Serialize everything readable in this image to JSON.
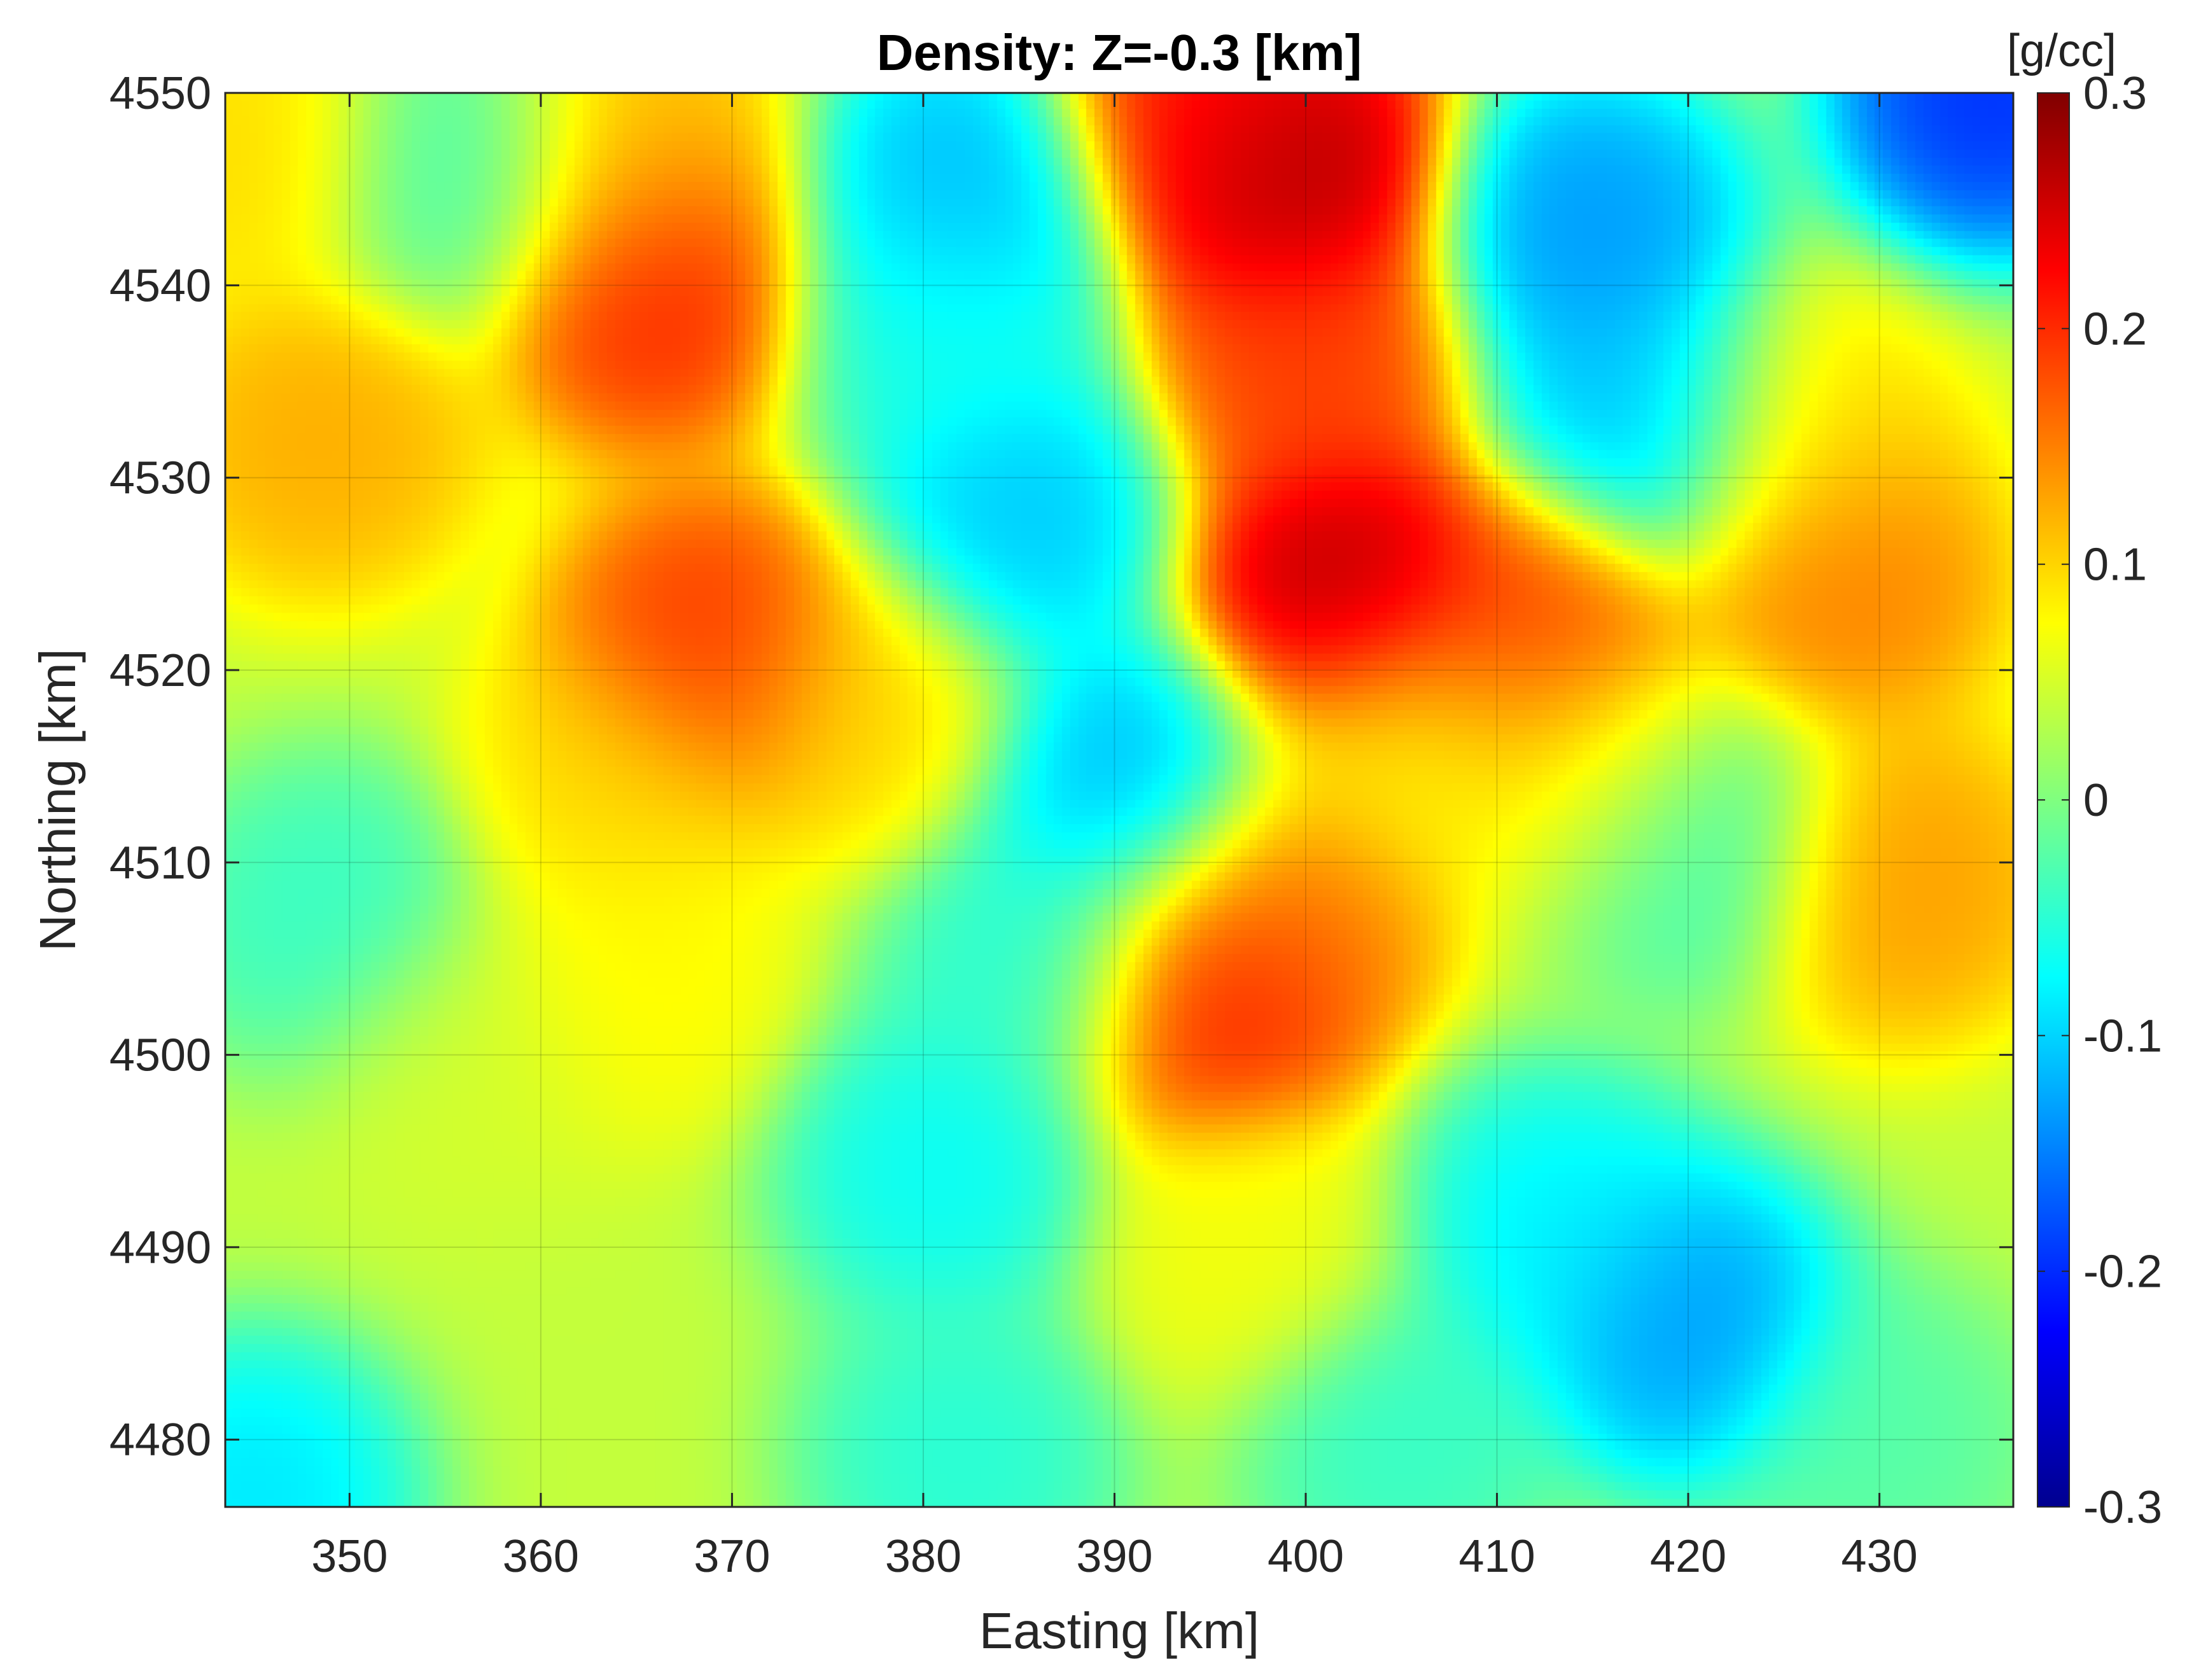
{
  "chart_data": {
    "type": "heatmap",
    "title": "Density: Z=-0.3 [km]",
    "xlabel": "Easting [km]",
    "ylabel": "Northing [km]",
    "xlim": [
      343.5,
      437
    ],
    "ylim": [
      4476.5,
      4550
    ],
    "x_ticks": [
      350,
      360,
      370,
      380,
      390,
      400,
      410,
      420,
      430
    ],
    "y_ticks": [
      4480,
      4490,
      4500,
      4510,
      4520,
      4530,
      4540,
      4550
    ],
    "grid": true,
    "colorbar": {
      "label": "[g/cc]",
      "colormap": "jet",
      "clim": [
        -0.3,
        0.3
      ],
      "ticks": [
        0.3,
        0.2,
        0.1,
        0,
        -0.1,
        -0.2,
        -0.3
      ],
      "tick_labels": [
        "0.3",
        "0.2",
        "0.1",
        "0",
        "-0.1",
        "-0.2",
        "-0.3"
      ],
      "position": "right"
    },
    "background_value": 0.04,
    "anomalies": [
      {
        "x": 366,
        "y": 4540,
        "value": 0.22
      },
      {
        "x": 365,
        "y": 4547,
        "value": 0.12
      },
      {
        "x": 369,
        "y": 4521,
        "value": 0.21
      },
      {
        "x": 364,
        "y": 4514,
        "value": 0.1
      },
      {
        "x": 377,
        "y": 4518,
        "value": 0.1
      },
      {
        "x": 365,
        "y": 4504,
        "value": 0.08
      },
      {
        "x": 345,
        "y": 4547,
        "value": 0.1
      },
      {
        "x": 348.5,
        "y": 4532,
        "value": 0.13
      },
      {
        "x": 399,
        "y": 4546,
        "value": 0.3
      },
      {
        "x": 395,
        "y": 4549,
        "value": 0.22
      },
      {
        "x": 400,
        "y": 4536,
        "value": 0.2
      },
      {
        "x": 402,
        "y": 4524,
        "value": 0.29
      },
      {
        "x": 412,
        "y": 4522,
        "value": 0.2
      },
      {
        "x": 405,
        "y": 4516,
        "value": 0.08
      },
      {
        "x": 399,
        "y": 4508,
        "value": 0.16
      },
      {
        "x": 395,
        "y": 4503,
        "value": 0.23
      },
      {
        "x": 415,
        "y": 4515,
        "value": 0.09
      },
      {
        "x": 428,
        "y": 4525,
        "value": 0.16
      },
      {
        "x": 431,
        "y": 4509,
        "value": 0.14
      },
      {
        "x": 426,
        "y": 4532,
        "value": 0.1
      },
      {
        "x": 397,
        "y": 4490,
        "value": 0.07
      },
      {
        "x": 356,
        "y": 4500,
        "value": 0.05
      },
      {
        "x": 382,
        "y": 4545,
        "value": -0.13
      },
      {
        "x": 381,
        "y": 4538,
        "value": -0.07
      },
      {
        "x": 385,
        "y": 4528,
        "value": -0.12
      },
      {
        "x": 391,
        "y": 4514,
        "value": -0.13
      },
      {
        "x": 386,
        "y": 4505,
        "value": -0.06
      },
      {
        "x": 415,
        "y": 4543,
        "value": -0.15
      },
      {
        "x": 418,
        "y": 4533,
        "value": -0.13
      },
      {
        "x": 436,
        "y": 4550,
        "value": -0.22
      },
      {
        "x": 420,
        "y": 4486,
        "value": -0.15
      },
      {
        "x": 413,
        "y": 4491,
        "value": -0.09
      },
      {
        "x": 381,
        "y": 4494,
        "value": -0.08
      },
      {
        "x": 349,
        "y": 4507,
        "value": -0.05
      },
      {
        "x": 356,
        "y": 4546,
        "value": -0.04
      },
      {
        "x": 345,
        "y": 4477,
        "value": -0.1
      },
      {
        "x": 382,
        "y": 4479,
        "value": -0.06
      },
      {
        "x": 405,
        "y": 4480,
        "value": -0.05
      },
      {
        "x": 430,
        "y": 4480,
        "value": -0.03
      },
      {
        "x": 420,
        "y": 4511,
        "value": -0.05
      }
    ]
  }
}
